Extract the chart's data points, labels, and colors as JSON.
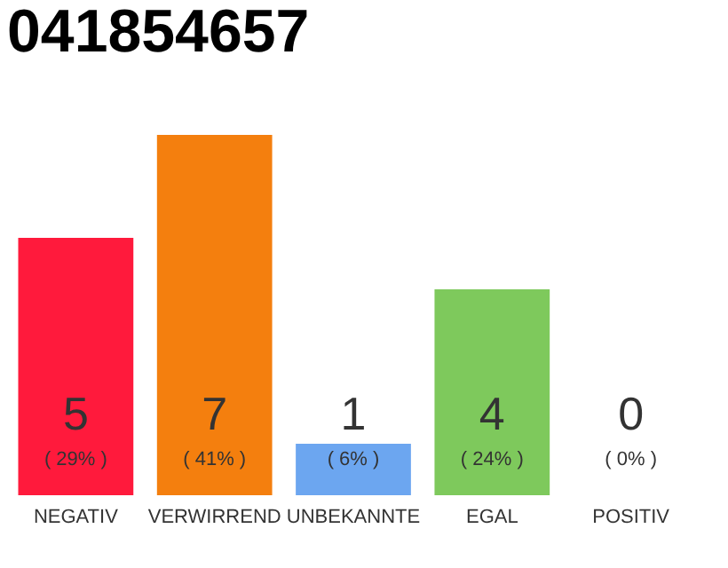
{
  "chart_data": {
    "type": "bar",
    "title": "041854657",
    "categories": [
      "NEGATIV",
      "VERWIRREND",
      "UNBEKANNTE",
      "EGAL",
      "POSITIV"
    ],
    "values": [
      5,
      7,
      1,
      4,
      0
    ],
    "colors": [
      "#ff1a3c",
      "#f47f0e",
      "#6ca6f0",
      "#7ec95c",
      "#cccccc"
    ],
    "data_labels": true,
    "tick_labels": "x",
    "annotations": [
      "( 29% )",
      "( 41% )",
      "( 6% )",
      "( 24% )",
      "( 0% )"
    ]
  }
}
